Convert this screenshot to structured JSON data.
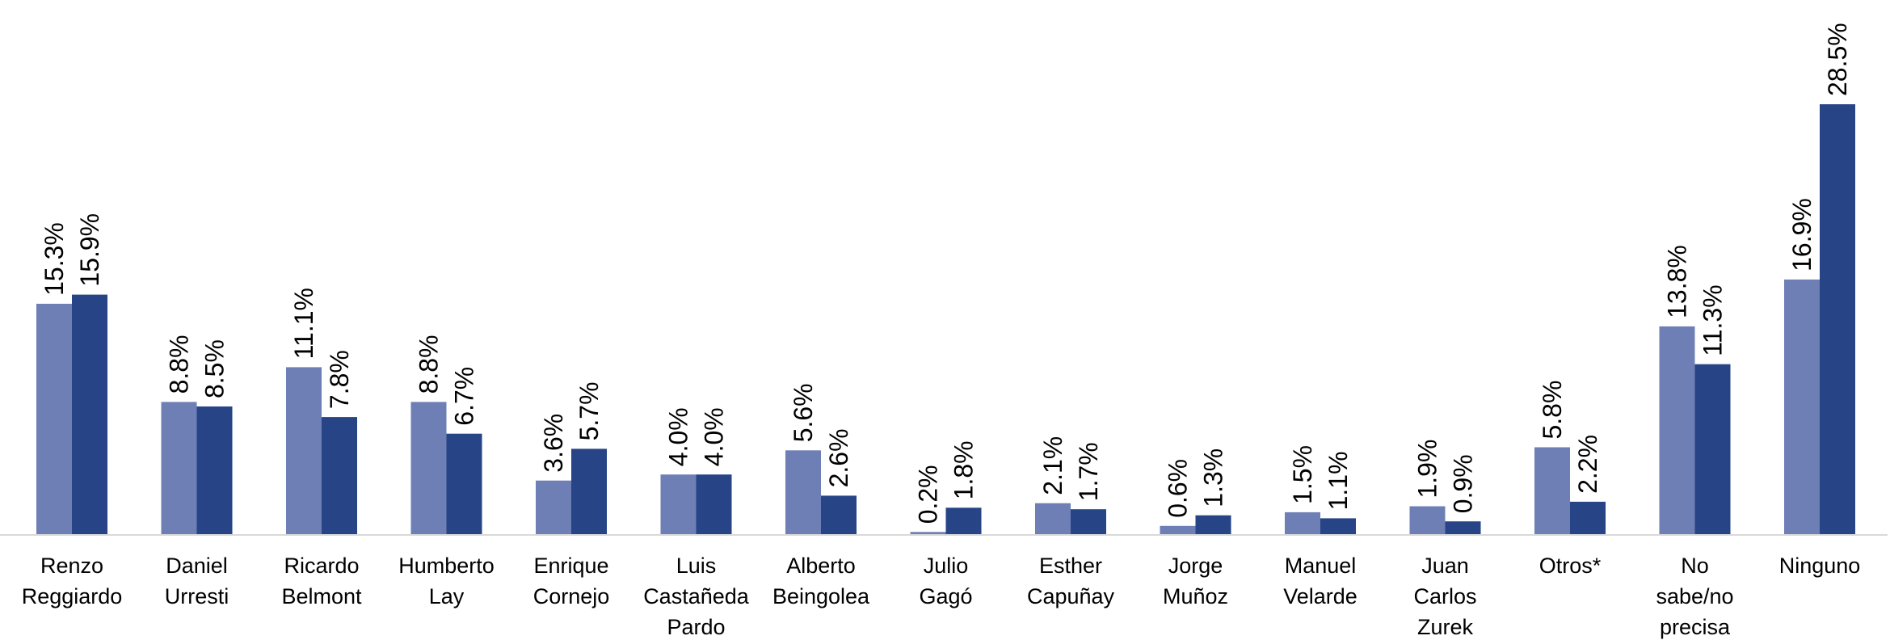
{
  "chart_data": {
    "type": "bar",
    "categories": [
      [
        "Renzo",
        "Reggiardo"
      ],
      [
        "Daniel",
        "Urresti"
      ],
      [
        "Ricardo",
        "Belmont"
      ],
      [
        "Humberto",
        "Lay"
      ],
      [
        "Enrique",
        "Cornejo"
      ],
      [
        "Luis",
        "Castañeda",
        "Pardo"
      ],
      [
        "Alberto",
        "Beingolea"
      ],
      [
        "Julio",
        "Gagó"
      ],
      [
        "Esther",
        "Capuñay"
      ],
      [
        "Jorge",
        "Muñoz"
      ],
      [
        "Manuel",
        "Velarde"
      ],
      [
        "Juan",
        "Carlos",
        "Zurek"
      ],
      [
        "Otros*"
      ],
      [
        "No",
        "sabe/no",
        "precisa"
      ],
      [
        "Ninguno"
      ]
    ],
    "series": [
      {
        "color": "#6e7fb5",
        "values": [
          15.3,
          8.8,
          11.1,
          8.8,
          3.6,
          4.0,
          5.6,
          0.2,
          2.1,
          0.6,
          1.5,
          1.9,
          5.8,
          13.8,
          16.9
        ],
        "labels": [
          "15.3%",
          "8.8%",
          "11.1%",
          "8.8%",
          "3.6%",
          "4.0%",
          "5.6%",
          "0.2%",
          "2.1%",
          "0.6%",
          "1.5%",
          "1.9%",
          "5.8%",
          "13.8%",
          "16.9%"
        ]
      },
      {
        "color": "#264486",
        "values": [
          15.9,
          8.5,
          7.8,
          6.7,
          5.7,
          4.0,
          2.6,
          1.8,
          1.7,
          1.3,
          1.1,
          0.9,
          2.2,
          11.3,
          28.5
        ],
        "labels": [
          "15.9%",
          "8.5%",
          "7.8%",
          "6.7%",
          "5.7%",
          "4.0%",
          "2.6%",
          "1.8%",
          "1.7%",
          "1.3%",
          "1.1%",
          "0.9%",
          "2.2%",
          "11.3%",
          "28.5%"
        ]
      }
    ],
    "ylim": [
      0,
      28.5
    ],
    "grid": false,
    "legend": "none",
    "title": "",
    "xlabel": "",
    "ylabel": ""
  }
}
